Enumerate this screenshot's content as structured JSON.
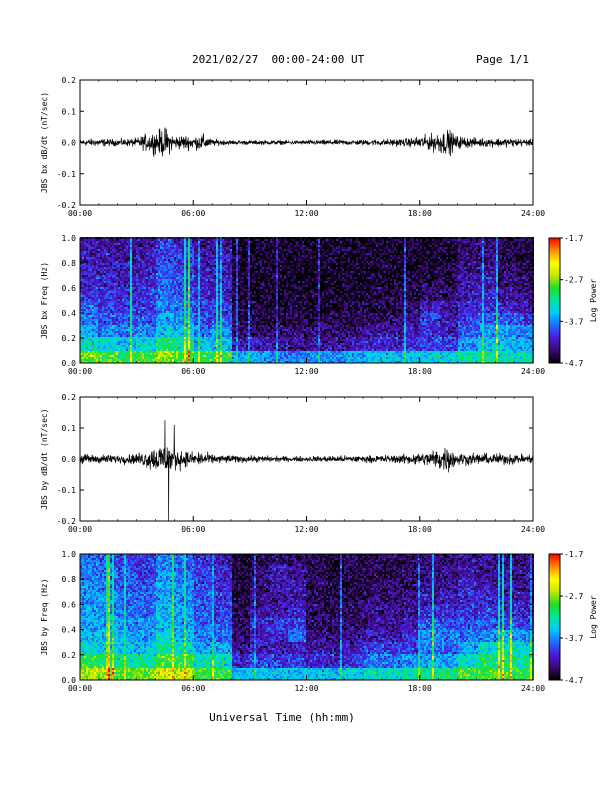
{
  "header": {
    "date_range": "2021/02/27  00:00-24:00 UT",
    "page": "Page 1/1"
  },
  "x_axis": {
    "ticks": [
      "00:00",
      "06:00",
      "12:00",
      "18:00",
      "24:00"
    ],
    "tick_hours": [
      0,
      6,
      12,
      18,
      24
    ],
    "range_hours": [
      0,
      24
    ],
    "label": "Universal Time (hh:mm)"
  },
  "colorbar": {
    "ticks": [
      "-1.7",
      "-2.7",
      "-3.7",
      "-4.7"
    ],
    "range": [
      -4.7,
      -1.7
    ],
    "label": "Log Power",
    "colors": [
      "#000000",
      "#3a0a6e",
      "#4b1ad8",
      "#1f6cff",
      "#00c8ff",
      "#00e6a0",
      "#22dd22",
      "#c8e600",
      "#ffff00",
      "#ff8c00",
      "#ff0000"
    ]
  },
  "chart_data": [
    {
      "type": "line",
      "ylabel": "JBS bx dB/dt (nT/sec)",
      "ylim": [
        -0.2,
        0.2
      ],
      "yticks": [
        "0.2",
        "0.1",
        "0.0",
        "-0.1",
        "-0.2"
      ],
      "ytick_values": [
        0.2,
        0.1,
        0.0,
        -0.1,
        -0.2
      ],
      "x_hours": [
        0,
        1,
        2,
        3,
        3.5,
        4,
        4.5,
        5,
        5.5,
        6,
        6.5,
        7,
        8,
        9,
        10,
        11,
        12,
        13,
        14,
        15,
        16,
        17,
        17.5,
        18,
        18.5,
        19,
        19.5,
        20,
        21,
        22,
        23,
        24
      ],
      "envelope": [
        0.015,
        0.018,
        0.015,
        0.02,
        0.04,
        0.05,
        0.07,
        0.03,
        0.035,
        0.03,
        0.04,
        0.015,
        0.01,
        0.01,
        0.01,
        0.01,
        0.01,
        0.012,
        0.012,
        0.012,
        0.015,
        0.018,
        0.02,
        0.03,
        0.035,
        0.05,
        0.06,
        0.03,
        0.02,
        0.02,
        0.02,
        0.015
      ]
    },
    {
      "type": "heatmap",
      "ylabel": "JBS bx Freq (Hz)",
      "ylim": [
        0,
        1.0
      ],
      "yticks": [
        "1.0",
        "0.8",
        "0.6",
        "0.4",
        "0.2",
        "0.0"
      ],
      "ytick_values": [
        1.0,
        0.8,
        0.6,
        0.4,
        0.2,
        0.0
      ],
      "time_bins_hours": [
        0,
        1,
        2,
        3,
        4,
        5,
        6,
        7,
        8,
        9,
        10,
        11,
        12,
        13,
        14,
        15,
        16,
        17,
        18,
        19,
        20,
        21,
        22,
        23
      ],
      "freq_bins_hz": [
        0.05,
        0.15,
        0.25,
        0.35,
        0.45,
        0.55,
        0.65,
        0.75,
        0.85,
        0.95
      ],
      "log_power": [
        [
          -2.8,
          -3.3,
          -3.6,
          -3.8,
          -3.9,
          -4.0,
          -4.1,
          -4.1,
          -4.2,
          -4.2
        ],
        [
          -2.9,
          -3.4,
          -3.7,
          -3.9,
          -4.0,
          -4.0,
          -4.1,
          -4.2,
          -4.2,
          -4.3
        ],
        [
          -3.0,
          -3.5,
          -3.8,
          -3.9,
          -4.0,
          -4.1,
          -4.2,
          -4.2,
          -4.3,
          -4.3
        ],
        [
          -2.9,
          -3.4,
          -3.7,
          -3.9,
          -4.0,
          -4.0,
          -4.1,
          -4.2,
          -4.2,
          -4.3
        ],
        [
          -2.7,
          -3.1,
          -3.4,
          -3.6,
          -3.7,
          -3.8,
          -3.9,
          -3.9,
          -4.0,
          -4.0
        ],
        [
          -2.8,
          -3.2,
          -3.5,
          -3.7,
          -3.8,
          -3.9,
          -3.9,
          -4.0,
          -4.0,
          -4.1
        ],
        [
          -3.0,
          -3.5,
          -3.8,
          -3.9,
          -4.0,
          -4.1,
          -4.1,
          -4.2,
          -4.2,
          -4.3
        ],
        [
          -3.0,
          -3.5,
          -3.7,
          -3.9,
          -4.0,
          -4.1,
          -4.1,
          -4.2,
          -4.2,
          -4.3
        ],
        [
          -3.6,
          -4.2,
          -4.4,
          -4.5,
          -4.5,
          -4.6,
          -4.6,
          -4.6,
          -4.6,
          -4.6
        ],
        [
          -3.6,
          -4.2,
          -4.4,
          -4.5,
          -4.5,
          -4.6,
          -4.6,
          -4.6,
          -4.6,
          -4.6
        ],
        [
          -3.7,
          -4.3,
          -4.4,
          -4.5,
          -4.6,
          -4.6,
          -4.6,
          -4.6,
          -4.6,
          -4.6
        ],
        [
          -3.7,
          -4.3,
          -4.4,
          -4.5,
          -4.5,
          -4.6,
          -4.6,
          -4.6,
          -4.6,
          -4.6
        ],
        [
          -3.7,
          -4.3,
          -4.4,
          -4.5,
          -4.6,
          -4.6,
          -4.6,
          -4.6,
          -4.6,
          -4.6
        ],
        [
          -3.7,
          -4.3,
          -4.4,
          -4.5,
          -4.6,
          -4.6,
          -4.6,
          -4.6,
          -4.6,
          -4.6
        ],
        [
          -3.6,
          -4.2,
          -4.4,
          -4.5,
          -4.5,
          -4.6,
          -4.6,
          -4.6,
          -4.6,
          -4.6
        ],
        [
          -3.5,
          -4.1,
          -4.3,
          -4.4,
          -4.5,
          -4.5,
          -4.6,
          -4.6,
          -4.6,
          -4.6
        ],
        [
          -3.5,
          -4.1,
          -4.3,
          -4.4,
          -4.5,
          -4.5,
          -4.6,
          -4.6,
          -4.6,
          -4.6
        ],
        [
          -3.5,
          -4.0,
          -4.2,
          -4.3,
          -4.4,
          -4.5,
          -4.5,
          -4.6,
          -4.6,
          -4.6
        ],
        [
          -3.4,
          -4.0,
          -4.1,
          -4.0,
          -4.1,
          -4.4,
          -4.5,
          -4.5,
          -4.6,
          -4.6
        ],
        [
          -3.4,
          -4.0,
          -4.2,
          -4.2,
          -4.3,
          -4.4,
          -4.5,
          -4.5,
          -4.6,
          -4.6
        ],
        [
          -3.2,
          -3.7,
          -3.9,
          -4.0,
          -4.1,
          -4.2,
          -4.2,
          -4.3,
          -4.4,
          -4.4
        ],
        [
          -3.2,
          -3.5,
          -3.7,
          -3.9,
          -4.0,
          -4.1,
          -4.2,
          -4.3,
          -4.4,
          -4.4
        ],
        [
          -3.3,
          -3.5,
          -3.6,
          -3.9,
          -4.1,
          -4.3,
          -4.4,
          -4.4,
          -4.5,
          -4.5
        ],
        [
          -3.3,
          -3.6,
          -3.7,
          -4.0,
          -4.2,
          -4.3,
          -4.4,
          -4.5,
          -4.5,
          -4.5
        ]
      ]
    },
    {
      "type": "line",
      "ylabel": "JBS by dB/dt (nT/sec)",
      "ylim": [
        -0.2,
        0.2
      ],
      "yticks": [
        "0.2",
        "0.1",
        "0.0",
        "-0.1",
        "-0.2"
      ],
      "ytick_values": [
        0.2,
        0.1,
        0.0,
        -0.1,
        -0.2
      ],
      "x_hours": [
        0,
        1,
        2,
        3,
        3.5,
        4,
        4.5,
        5,
        5.5,
        6,
        6.5,
        7,
        8,
        9,
        10,
        11,
        12,
        13,
        14,
        15,
        16,
        17,
        17.5,
        18,
        18.5,
        19,
        19.5,
        20,
        21,
        22,
        23,
        24
      ],
      "envelope": [
        0.025,
        0.02,
        0.02,
        0.025,
        0.04,
        0.06,
        0.08,
        0.05,
        0.04,
        0.03,
        0.035,
        0.02,
        0.018,
        0.015,
        0.015,
        0.012,
        0.012,
        0.015,
        0.015,
        0.015,
        0.018,
        0.02,
        0.025,
        0.03,
        0.035,
        0.05,
        0.06,
        0.03,
        0.025,
        0.025,
        0.025,
        0.02
      ],
      "spikes": [
        {
          "hour": 4.7,
          "value": -0.205
        },
        {
          "hour": 4.5,
          "value": 0.125
        },
        {
          "hour": 5.0,
          "value": 0.11
        }
      ]
    },
    {
      "type": "heatmap",
      "ylabel": "JBS by Freq (Hz)",
      "ylim": [
        0,
        1.0
      ],
      "yticks": [
        "1.0",
        "0.8",
        "0.6",
        "0.4",
        "0.2",
        "0.0"
      ],
      "ytick_values": [
        1.0,
        0.8,
        0.6,
        0.4,
        0.2,
        0.0
      ],
      "time_bins_hours": [
        0,
        1,
        2,
        3,
        4,
        5,
        6,
        7,
        8,
        9,
        10,
        11,
        12,
        13,
        14,
        15,
        16,
        17,
        18,
        19,
        20,
        21,
        22,
        23
      ],
      "freq_bins_hz": [
        0.05,
        0.15,
        0.25,
        0.35,
        0.45,
        0.55,
        0.65,
        0.75,
        0.85,
        0.95
      ],
      "log_power": [
        [
          -2.6,
          -3.0,
          -3.3,
          -3.5,
          -3.6,
          -3.6,
          -3.7,
          -3.7,
          -3.8,
          -3.8
        ],
        [
          -2.7,
          -3.1,
          -3.4,
          -3.5,
          -3.6,
          -3.7,
          -3.7,
          -3.8,
          -3.8,
          -3.9
        ],
        [
          -2.8,
          -3.2,
          -3.5,
          -3.6,
          -3.7,
          -3.8,
          -3.8,
          -3.9,
          -3.9,
          -4.0
        ],
        [
          -2.8,
          -3.2,
          -3.5,
          -3.6,
          -3.7,
          -3.8,
          -3.8,
          -3.9,
          -4.0,
          -4.0
        ],
        [
          -2.5,
          -2.9,
          -3.2,
          -3.4,
          -3.5,
          -3.5,
          -3.6,
          -3.6,
          -3.7,
          -3.7
        ],
        [
          -2.6,
          -3.0,
          -3.3,
          -3.5,
          -3.6,
          -3.6,
          -3.7,
          -3.7,
          -3.8,
          -3.8
        ],
        [
          -2.9,
          -3.3,
          -3.6,
          -3.7,
          -3.8,
          -3.9,
          -3.9,
          -4.0,
          -4.0,
          -4.1
        ],
        [
          -2.9,
          -3.3,
          -3.6,
          -3.8,
          -3.9,
          -4.0,
          -4.0,
          -4.1,
          -4.1,
          -4.2
        ],
        [
          -3.5,
          -4.1,
          -4.3,
          -4.4,
          -4.4,
          -4.5,
          -4.5,
          -4.5,
          -4.6,
          -4.6
        ],
        [
          -3.5,
          -4.0,
          -4.2,
          -4.2,
          -4.1,
          -4.3,
          -4.3,
          -4.4,
          -4.4,
          -4.5
        ],
        [
          -3.5,
          -4.0,
          -4.2,
          -4.1,
          -4.0,
          -4.2,
          -4.3,
          -4.2,
          -4.2,
          -4.4
        ],
        [
          -3.5,
          -4.0,
          -4.2,
          -3.8,
          -4.0,
          -4.1,
          -4.2,
          -4.2,
          -4.3,
          -4.4
        ],
        [
          -3.5,
          -4.1,
          -4.3,
          -4.3,
          -4.4,
          -4.4,
          -4.5,
          -4.5,
          -4.5,
          -4.5
        ],
        [
          -3.5,
          -4.1,
          -4.3,
          -4.4,
          -4.4,
          -4.5,
          -4.5,
          -4.5,
          -4.6,
          -4.6
        ],
        [
          -3.4,
          -4.0,
          -4.2,
          -4.3,
          -4.4,
          -4.4,
          -4.5,
          -4.5,
          -4.5,
          -4.5
        ],
        [
          -3.3,
          -3.8,
          -4.0,
          -4.2,
          -4.3,
          -4.3,
          -4.4,
          -4.4,
          -4.5,
          -4.5
        ],
        [
          -3.3,
          -3.8,
          -4.0,
          -4.2,
          -4.3,
          -4.3,
          -4.4,
          -4.4,
          -4.5,
          -4.5
        ],
        [
          -3.2,
          -3.7,
          -4.0,
          -4.1,
          -4.2,
          -4.3,
          -4.3,
          -4.4,
          -4.4,
          -4.5
        ],
        [
          -3.2,
          -3.6,
          -3.8,
          -3.7,
          -3.8,
          -4.1,
          -4.2,
          -4.3,
          -4.4,
          -4.4
        ],
        [
          -3.1,
          -3.6,
          -3.8,
          -3.8,
          -3.9,
          -4.1,
          -4.2,
          -4.3,
          -4.3,
          -4.4
        ],
        [
          -2.9,
          -3.3,
          -3.6,
          -3.8,
          -3.9,
          -4.0,
          -4.1,
          -4.1,
          -4.2,
          -4.3
        ],
        [
          -2.9,
          -3.1,
          -3.4,
          -3.7,
          -3.9,
          -4.0,
          -4.1,
          -4.2,
          -4.3,
          -4.3
        ],
        [
          -3.0,
          -3.1,
          -3.3,
          -3.6,
          -3.9,
          -4.1,
          -4.2,
          -4.2,
          -4.3,
          -4.4
        ],
        [
          -3.0,
          -3.2,
          -3.4,
          -3.7,
          -4.0,
          -4.1,
          -4.2,
          -4.3,
          -4.3,
          -4.4
        ]
      ]
    }
  ]
}
